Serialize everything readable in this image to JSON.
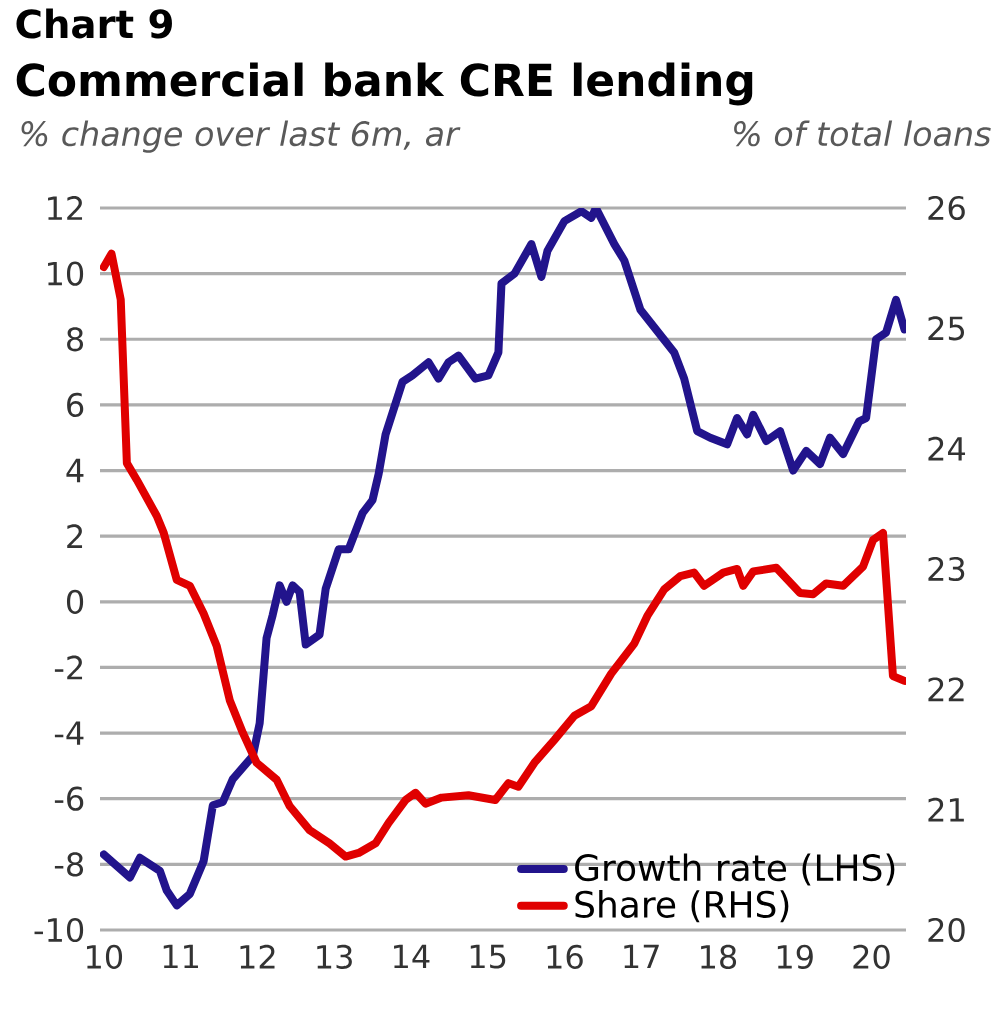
{
  "chart_data": {
    "type": "line",
    "title": "Chart 9",
    "subtitle": "Commercial bank CRE lending",
    "ylabel": "% change over last 6m, ar",
    "y2label": "% of total loans",
    "xlim": [
      9.95,
      20.45
    ],
    "xticks": [
      10,
      11,
      12,
      13,
      14,
      15,
      16,
      17,
      18,
      19,
      20
    ],
    "ylim": [
      -10,
      12
    ],
    "yticks": [
      -10,
      -8,
      -6,
      -4,
      -2,
      0,
      2,
      4,
      6,
      8,
      10,
      12
    ],
    "y2lim": [
      20,
      26
    ],
    "y2ticks": [
      20,
      21,
      22,
      23,
      24,
      25,
      26
    ],
    "grid": "y",
    "legend": "bottom right",
    "series": [
      {
        "name": "Growth rate (LHS)",
        "color": "#22148c",
        "x": [
          10.0,
          10.34,
          10.47,
          10.73,
          10.82,
          10.95,
          11.12,
          11.3,
          11.42,
          11.55,
          11.68,
          11.94,
          12.03,
          12.12,
          12.2,
          12.29,
          12.38,
          12.46,
          12.55,
          12.63,
          12.81,
          12.89,
          13.06,
          13.19,
          13.37,
          13.5,
          13.58,
          13.67,
          13.89,
          14.02,
          14.23,
          14.36,
          14.49,
          14.62,
          14.84,
          15.01,
          15.14,
          15.18,
          15.35,
          15.57,
          15.7,
          15.78,
          16.0,
          16.22,
          16.35,
          16.41,
          16.65,
          16.78,
          16.99,
          17.43,
          17.56,
          17.73,
          17.9,
          18.12,
          18.25,
          18.38,
          18.46,
          18.63,
          18.81,
          18.98,
          19.15,
          19.33,
          19.46,
          19.63,
          19.84,
          19.93,
          20.06,
          20.19,
          20.32,
          20.43
        ],
        "values": [
          -7.7,
          -8.4,
          -7.8,
          -8.2,
          -8.8,
          -9.25,
          -8.9,
          -7.9,
          -6.2,
          -6.1,
          -5.4,
          -4.7,
          -3.7,
          -1.1,
          -0.4,
          0.5,
          0.0,
          0.5,
          0.3,
          -1.3,
          -1.0,
          0.4,
          1.6,
          1.6,
          2.7,
          3.1,
          3.9,
          5.1,
          6.7,
          6.9,
          7.3,
          6.8,
          7.3,
          7.5,
          6.8,
          6.9,
          7.6,
          9.7,
          10.0,
          10.9,
          9.9,
          10.7,
          11.6,
          11.9,
          11.7,
          12.0,
          10.9,
          10.4,
          8.9,
          7.6,
          6.8,
          5.2,
          5.0,
          4.8,
          5.6,
          5.1,
          5.7,
          4.9,
          5.2,
          4.0,
          4.6,
          4.2,
          5.0,
          4.5,
          5.5,
          5.6,
          8.0,
          8.2,
          9.2,
          8.3
        ]
      },
      {
        "name": "Share (RHS)",
        "color": "#e00000",
        "axis": "y2",
        "x": [
          10.0,
          10.1,
          10.22,
          10.3,
          10.43,
          10.69,
          10.78,
          10.95,
          11.12,
          11.3,
          11.47,
          11.64,
          11.81,
          11.99,
          12.25,
          12.42,
          12.68,
          12.94,
          13.15,
          13.32,
          13.54,
          13.71,
          13.93,
          14.06,
          14.19,
          14.4,
          14.75,
          15.1,
          15.27,
          15.4,
          15.61,
          15.87,
          16.13,
          16.35,
          16.61,
          16.91,
          17.08,
          17.3,
          17.51,
          17.69,
          17.82,
          18.07,
          18.25,
          18.33,
          18.46,
          18.76,
          19.07,
          19.24,
          19.41,
          19.63,
          19.89,
          20.02,
          20.15,
          20.28,
          20.43
        ],
        "values": [
          25.51,
          25.62,
          25.24,
          23.88,
          23.74,
          23.44,
          23.3,
          22.91,
          22.86,
          22.63,
          22.36,
          21.91,
          21.64,
          21.39,
          21.25,
          21.03,
          20.83,
          20.72,
          20.61,
          20.64,
          20.72,
          20.89,
          21.08,
          21.14,
          21.05,
          21.1,
          21.12,
          21.08,
          21.22,
          21.19,
          21.39,
          21.58,
          21.78,
          21.86,
          22.13,
          22.38,
          22.61,
          22.83,
          22.94,
          22.97,
          22.86,
          22.97,
          23.0,
          22.86,
          22.98,
          23.01,
          22.8,
          22.79,
          22.88,
          22.86,
          23.02,
          23.24,
          23.3,
          22.11,
          22.07
        ]
      }
    ]
  }
}
